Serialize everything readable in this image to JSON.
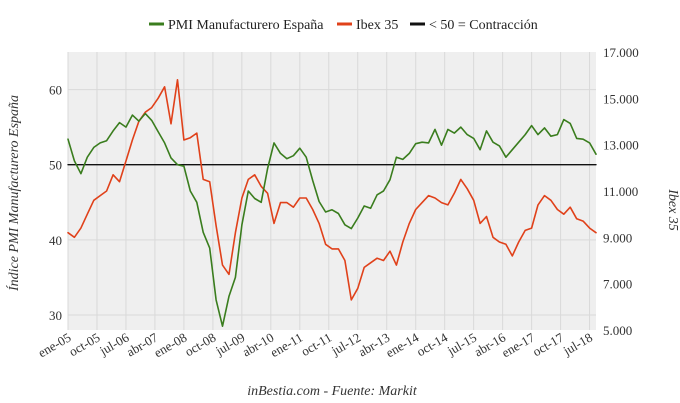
{
  "chart_data": {
    "type": "line",
    "legend_position": "top-center",
    "grid": true,
    "series": [
      {
        "name": "PMI Manufacturero España",
        "axis": "left",
        "color": "#3a7d1e",
        "x": [
          "2005-01",
          "2005-03",
          "2005-05",
          "2005-07",
          "2005-09",
          "2005-11",
          "2006-01",
          "2006-03",
          "2006-05",
          "2006-07",
          "2006-09",
          "2006-11",
          "2007-01",
          "2007-03",
          "2007-05",
          "2007-07",
          "2007-09",
          "2007-11",
          "2008-01",
          "2008-03",
          "2008-05",
          "2008-07",
          "2008-09",
          "2008-11",
          "2009-01",
          "2009-03",
          "2009-05",
          "2009-07",
          "2009-09",
          "2009-11",
          "2010-01",
          "2010-03",
          "2010-05",
          "2010-07",
          "2010-09",
          "2010-11",
          "2011-01",
          "2011-03",
          "2011-05",
          "2011-07",
          "2011-09",
          "2011-11",
          "2012-01",
          "2012-03",
          "2012-05",
          "2012-07",
          "2012-09",
          "2012-11",
          "2013-01",
          "2013-03",
          "2013-05",
          "2013-07",
          "2013-09",
          "2013-11",
          "2014-01",
          "2014-03",
          "2014-05",
          "2014-07",
          "2014-09",
          "2014-11",
          "2015-01",
          "2015-03",
          "2015-05",
          "2015-07",
          "2015-09",
          "2015-11",
          "2016-01",
          "2016-03",
          "2016-05",
          "2016-07",
          "2016-09",
          "2016-11",
          "2017-01",
          "2017-03",
          "2017-05",
          "2017-07",
          "2017-09",
          "2017-11",
          "2018-01",
          "2018-03",
          "2018-05",
          "2018-07",
          "2018-09"
        ],
        "values": [
          53.4,
          50.5,
          48.8,
          51.0,
          52.3,
          52.9,
          53.2,
          54.5,
          55.6,
          55.0,
          56.6,
          55.8,
          56.8,
          55.9,
          54.4,
          52.9,
          50.9,
          50.0,
          49.8,
          46.5,
          45.0,
          41.0,
          38.9,
          32.0,
          28.5,
          32.5,
          35.0,
          42.0,
          46.5,
          45.5,
          45.0,
          49.5,
          52.9,
          51.5,
          50.8,
          51.2,
          52.2,
          51.0,
          47.9,
          45.1,
          43.7,
          44.0,
          43.5,
          42.0,
          41.5,
          42.9,
          44.5,
          44.2,
          46.0,
          46.5,
          48.0,
          51.0,
          50.7,
          51.5,
          52.8,
          53.0,
          52.9,
          54.7,
          52.6,
          54.7,
          54.2,
          55.0,
          54.0,
          53.5,
          52.0,
          54.5,
          53.0,
          52.5,
          51.0,
          52.0,
          53.0,
          54.0,
          55.2,
          54.0,
          54.9,
          53.8,
          54.0,
          56.0,
          55.5,
          53.5,
          53.4,
          52.9,
          51.4
        ]
      },
      {
        "name": "Ibex 35",
        "axis": "right",
        "color": "#e0411a",
        "x": [
          "2005-01",
          "2005-03",
          "2005-05",
          "2005-07",
          "2005-09",
          "2005-11",
          "2006-01",
          "2006-03",
          "2006-05",
          "2006-07",
          "2006-09",
          "2006-11",
          "2007-01",
          "2007-03",
          "2007-05",
          "2007-07",
          "2007-09",
          "2007-11",
          "2008-01",
          "2008-03",
          "2008-05",
          "2008-07",
          "2008-09",
          "2008-11",
          "2009-01",
          "2009-03",
          "2009-05",
          "2009-07",
          "2009-09",
          "2009-11",
          "2010-01",
          "2010-03",
          "2010-05",
          "2010-07",
          "2010-09",
          "2010-11",
          "2011-01",
          "2011-03",
          "2011-05",
          "2011-07",
          "2011-09",
          "2011-11",
          "2012-01",
          "2012-03",
          "2012-05",
          "2012-07",
          "2012-09",
          "2012-11",
          "2013-01",
          "2013-03",
          "2013-05",
          "2013-07",
          "2013-09",
          "2013-11",
          "2014-01",
          "2014-03",
          "2014-05",
          "2014-07",
          "2014-09",
          "2014-11",
          "2015-01",
          "2015-03",
          "2015-05",
          "2015-07",
          "2015-09",
          "2015-11",
          "2016-01",
          "2016-03",
          "2016-05",
          "2016-07",
          "2016-09",
          "2016-11",
          "2017-01",
          "2017-03",
          "2017-05",
          "2017-07",
          "2017-09",
          "2017-11",
          "2018-01",
          "2018-03",
          "2018-05",
          "2018-07",
          "2018-09"
        ],
        "values": [
          9.2,
          9.0,
          9.4,
          10.0,
          10.6,
          10.8,
          11.0,
          11.7,
          11.4,
          12.3,
          13.2,
          14.0,
          14.4,
          14.6,
          15.0,
          15.5,
          13.9,
          15.8,
          13.2,
          13.3,
          13.5,
          11.5,
          11.4,
          9.5,
          7.8,
          7.4,
          9.2,
          10.7,
          11.5,
          11.7,
          11.2,
          10.9,
          9.6,
          10.5,
          10.5,
          10.3,
          10.7,
          10.7,
          10.2,
          9.6,
          8.7,
          8.5,
          8.5,
          8.0,
          6.3,
          6.8,
          7.7,
          7.9,
          8.1,
          8.0,
          8.4,
          7.8,
          8.8,
          9.6,
          10.2,
          10.5,
          10.8,
          10.7,
          10.5,
          10.4,
          10.9,
          11.5,
          11.1,
          10.6,
          9.6,
          9.9,
          9.0,
          8.8,
          8.7,
          8.2,
          8.8,
          9.3,
          9.4,
          10.4,
          10.8,
          10.6,
          10.2,
          10.0,
          10.3,
          9.8,
          9.7,
          9.4,
          9.2
        ]
      },
      {
        "name": "< 50 = Contracción",
        "axis": "left",
        "color": "#111111",
        "x": [
          "2005-01",
          "2018-09"
        ],
        "values": [
          50,
          50
        ]
      }
    ],
    "x_range": [
      "2005-01",
      "2018-09"
    ],
    "x_ticks": [
      {
        "date": "2005-01",
        "label": "ene-05"
      },
      {
        "date": "2005-10",
        "label": "oct-05"
      },
      {
        "date": "2006-07",
        "label": "jul-06"
      },
      {
        "date": "2007-04",
        "label": "abr-07"
      },
      {
        "date": "2008-01",
        "label": "ene-08"
      },
      {
        "date": "2008-10",
        "label": "oct-08"
      },
      {
        "date": "2009-07",
        "label": "jul-09"
      },
      {
        "date": "2010-04",
        "label": "abr-10"
      },
      {
        "date": "2011-01",
        "label": "ene-11"
      },
      {
        "date": "2011-10",
        "label": "oct-11"
      },
      {
        "date": "2012-07",
        "label": "jul-12"
      },
      {
        "date": "2013-04",
        "label": "abr-13"
      },
      {
        "date": "2014-01",
        "label": "ene-14"
      },
      {
        "date": "2014-10",
        "label": "oct-14"
      },
      {
        "date": "2015-07",
        "label": "jul-15"
      },
      {
        "date": "2016-04",
        "label": "abr-16"
      },
      {
        "date": "2017-01",
        "label": "ene-17"
      },
      {
        "date": "2017-10",
        "label": "oct-17"
      },
      {
        "date": "2018-07",
        "label": "jul-18"
      }
    ],
    "y_left": {
      "title": "Índice PMI Manufacturero España",
      "range": [
        28,
        65
      ],
      "ticks": [
        {
          "value": 30,
          "label": "30"
        },
        {
          "value": 40,
          "label": "40"
        },
        {
          "value": 50,
          "label": "50"
        },
        {
          "value": 60,
          "label": "60"
        }
      ]
    },
    "y_right": {
      "title": "Ibex 35",
      "range": [
        5.0,
        17.0
      ],
      "ticks": [
        {
          "value": 5.0,
          "label": "5.000"
        },
        {
          "value": 7.0,
          "label": "7.000"
        },
        {
          "value": 9.0,
          "label": "9.000"
        },
        {
          "value": 11.0,
          "label": "11.000"
        },
        {
          "value": 13.0,
          "label": "13.000"
        },
        {
          "value": 15.0,
          "label": "15.000"
        },
        {
          "value": 17.0,
          "label": "17.000"
        }
      ]
    },
    "source": "inBestia.com - Fuente: Markit"
  }
}
